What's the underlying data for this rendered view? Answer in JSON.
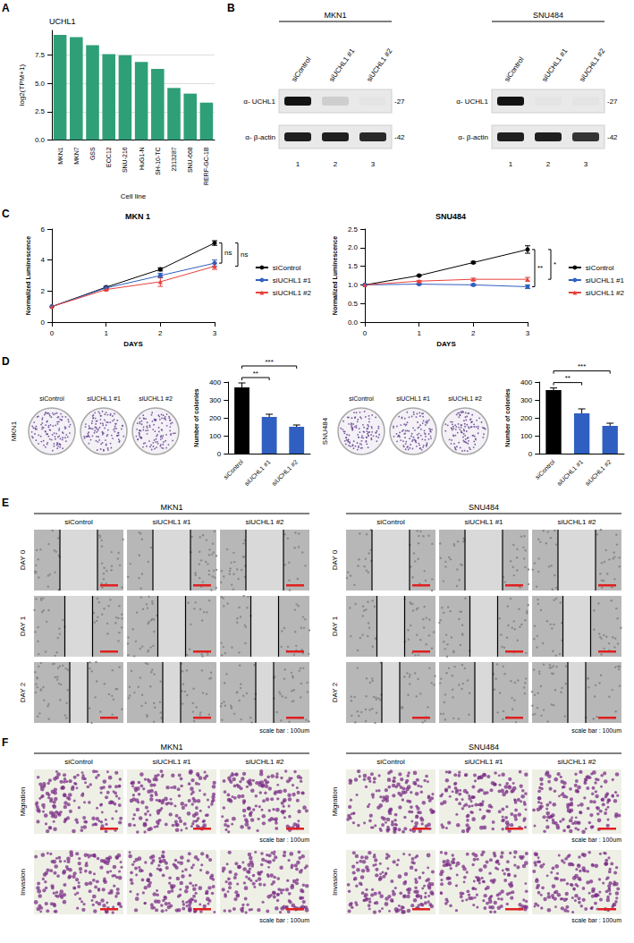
{
  "panel_labels": [
    "A",
    "B",
    "C",
    "D",
    "E",
    "F"
  ],
  "chart_data": [
    {
      "type": "bar",
      "title": "UCHL1",
      "x_label": "Cell line",
      "y_label": "log2(TPM+1)",
      "categories": [
        "MKN1",
        "MKN7",
        "GSS",
        "ECC12",
        "SNU-216",
        "HuG1-N",
        "SH-10-TC",
        "2313287",
        "SNU-668",
        "RERF-GC-1B"
      ],
      "values": [
        9.3,
        9.1,
        8.4,
        7.6,
        7.5,
        6.9,
        6.3,
        4.6,
        4.1,
        3.3
      ],
      "color": "#2f9f77",
      "ylim": [
        0,
        9.7
      ],
      "yticks": [
        {
          "value": 0,
          "label": "0.0"
        },
        {
          "value": 2.5,
          "label": "2.5"
        },
        {
          "value": 5,
          "label": "5.0"
        },
        {
          "value": 7.5,
          "label": "7.5"
        }
      ],
      "grid": true
    },
    {
      "type": "line",
      "title": "MKN 1",
      "x_label": "DAYS",
      "y_label": "Normalized Luminescence",
      "x": [
        0,
        1,
        2,
        3
      ],
      "series": [
        {
          "name": "siControl",
          "color": "#000000",
          "marker": "circle",
          "values": [
            1,
            2.25,
            3.4,
            5.1
          ],
          "errors": [
            0,
            0.05,
            0.1,
            0.15
          ]
        },
        {
          "name": "siUCHL1 #1",
          "color": "#2f5fc0",
          "marker": "circle",
          "values": [
            1,
            2.2,
            3.0,
            3.8
          ],
          "errors": [
            0,
            0.05,
            0.15,
            0.2
          ]
        },
        {
          "name": "siUCHL1 #2",
          "color": "#e8413c",
          "marker": "triangle",
          "values": [
            1,
            2.1,
            2.6,
            3.6
          ],
          "errors": [
            0,
            0.05,
            0.3,
            0.2
          ]
        }
      ],
      "xlim": [
        0,
        3
      ],
      "xticks": [
        0,
        1,
        2,
        3
      ],
      "ylim": [
        0,
        6
      ],
      "yticks": [
        0,
        2,
        4,
        6
      ],
      "legend": "right",
      "significance": [
        {
          "between": [
            "siControl",
            "siUCHL1 #1"
          ],
          "label": "ns"
        },
        {
          "between": [
            "siControl",
            "siUCHL1 #2"
          ],
          "label": "ns"
        }
      ]
    },
    {
      "type": "line",
      "title": "SNU484",
      "x_label": "DAYS",
      "y_label": "Normalized Luminescence",
      "x": [
        0,
        1,
        2,
        3
      ],
      "series": [
        {
          "name": "siControl",
          "color": "#000000",
          "marker": "circle",
          "values": [
            1,
            1.25,
            1.6,
            1.95
          ],
          "errors": [
            0,
            0.02,
            0.03,
            0.1
          ]
        },
        {
          "name": "siUCHL1 #1",
          "color": "#2f5fc0",
          "marker": "circle",
          "values": [
            1,
            1.02,
            1.0,
            0.95
          ],
          "errors": [
            0,
            0.02,
            0.03,
            0.05
          ]
        },
        {
          "name": "siUCHL1 #2",
          "color": "#e8413c",
          "marker": "triangle",
          "values": [
            1,
            1.1,
            1.15,
            1.15
          ],
          "errors": [
            0,
            0.02,
            0.03,
            0.05
          ]
        }
      ],
      "xlim": [
        0,
        3
      ],
      "xticks": [
        0,
        1,
        2,
        3
      ],
      "ylim": [
        0,
        2.5
      ],
      "yticks": [
        {
          "value": 0,
          "label": "0.0"
        },
        0.5,
        {
          "value": 1,
          "label": "1.0"
        },
        1.5,
        {
          "value": 2,
          "label": "2.0"
        },
        2.5
      ],
      "legend": "right",
      "significance": [
        {
          "between": [
            "siControl",
            "siUCHL1 #1"
          ],
          "label": "**"
        },
        {
          "between": [
            "siControl",
            "siUCHL1 #2"
          ],
          "label": "*"
        }
      ]
    },
    {
      "type": "bar",
      "y_label": "Number of colonies",
      "categories": [
        "siControl",
        "siUCHL1 #1",
        "siUCHL1 #2"
      ],
      "values": [
        370,
        205,
        150
      ],
      "errors": [
        25,
        15,
        10
      ],
      "colors": [
        "#000000",
        "#2f5fc0",
        "#2f5fc0"
      ],
      "ylim": [
        0,
        400
      ],
      "yticks": [
        0,
        100,
        200,
        300,
        400
      ],
      "significance": [
        {
          "between": [
            "siControl",
            "siUCHL1 #1"
          ],
          "label": "**"
        },
        {
          "between": [
            "siControl",
            "siUCHL1 #2"
          ],
          "label": "***"
        }
      ]
    },
    {
      "type": "bar",
      "y_label": "Number of colonies",
      "categories": [
        "siControl",
        "siUCHL1 #1",
        "siUCHL1 #2"
      ],
      "values": [
        355,
        225,
        155
      ],
      "errors": [
        12,
        25,
        15
      ],
      "colors": [
        "#000000",
        "#2f5fc0",
        "#2f5fc0"
      ],
      "ylim": [
        0,
        400
      ],
      "yticks": [
        0,
        100,
        200,
        300,
        400
      ],
      "significance": [
        {
          "between": [
            "siControl",
            "siUCHL1 #1"
          ],
          "label": "**"
        },
        {
          "between": [
            "siControl",
            "siUCHL1 #2"
          ],
          "label": "***"
        }
      ]
    }
  ],
  "western_blot": [
    {
      "cell_line": "MKN1",
      "lanes": [
        "siControl",
        "siUCHL1 #1",
        "siUCHL1 #2"
      ],
      "lane_numbers": [
        1,
        2,
        3
      ],
      "rows": [
        {
          "label": "α- UCHL1",
          "size": "-27",
          "intensity": [
            1,
            0.12,
            0.02
          ]
        },
        {
          "label": "α- β-actin",
          "size": "-42",
          "intensity": [
            0.95,
            0.95,
            0.9
          ]
        }
      ]
    },
    {
      "cell_line": "SNU484",
      "lanes": [
        "siControl",
        "siUCHL1 #1",
        "siUCHL1 #2"
      ],
      "lane_numbers": [
        1,
        2,
        3
      ],
      "rows": [
        {
          "label": "α- UCHL1",
          "size": "-27",
          "intensity": [
            1,
            0.02,
            0.02
          ]
        },
        {
          "label": "α- β-actin",
          "size": "-42",
          "intensity": [
            0.95,
            0.95,
            0.85
          ]
        }
      ]
    }
  ],
  "colony_assay": [
    {
      "cell_line": "MKN1",
      "columns": [
        "siControl",
        "siUCHL1 #1",
        "siUCHL1 #2"
      ]
    },
    {
      "cell_line": "SNU484",
      "columns": [
        "siControl",
        "siUCHL1 #1",
        "siUCHL1 #2"
      ]
    }
  ],
  "wound_healing": [
    {
      "cell_line": "MKN1",
      "columns": [
        "siControl",
        "siUCHL1 #1",
        "siUCHL1 #2"
      ],
      "rows": [
        "DAY 0",
        "DAY 1",
        "DAY 2"
      ],
      "scale_bar": "scale bar : 100um"
    },
    {
      "cell_line": "SNU484",
      "columns": [
        "siControl",
        "siUCHL1 #1",
        "siUCHL1 #2"
      ],
      "rows": [
        "DAY 0",
        "DAY 1",
        "DAY 2"
      ],
      "scale_bar": "scale bar : 100um"
    }
  ],
  "transwell": [
    {
      "cell_line": "MKN1",
      "columns": [
        "siControl",
        "siUCHL1 #1",
        "siUCHL1 #2"
      ],
      "rows": [
        "Migration",
        "Invasion"
      ],
      "scale_bar": "scale bar : 100um"
    },
    {
      "cell_line": "SNU484",
      "columns": [
        "siControl",
        "siUCHL1 #1",
        "siUCHL1 #2"
      ],
      "rows": [
        "Migration",
        "Invasion"
      ],
      "scale_bar": "scale bar : 100um"
    }
  ]
}
